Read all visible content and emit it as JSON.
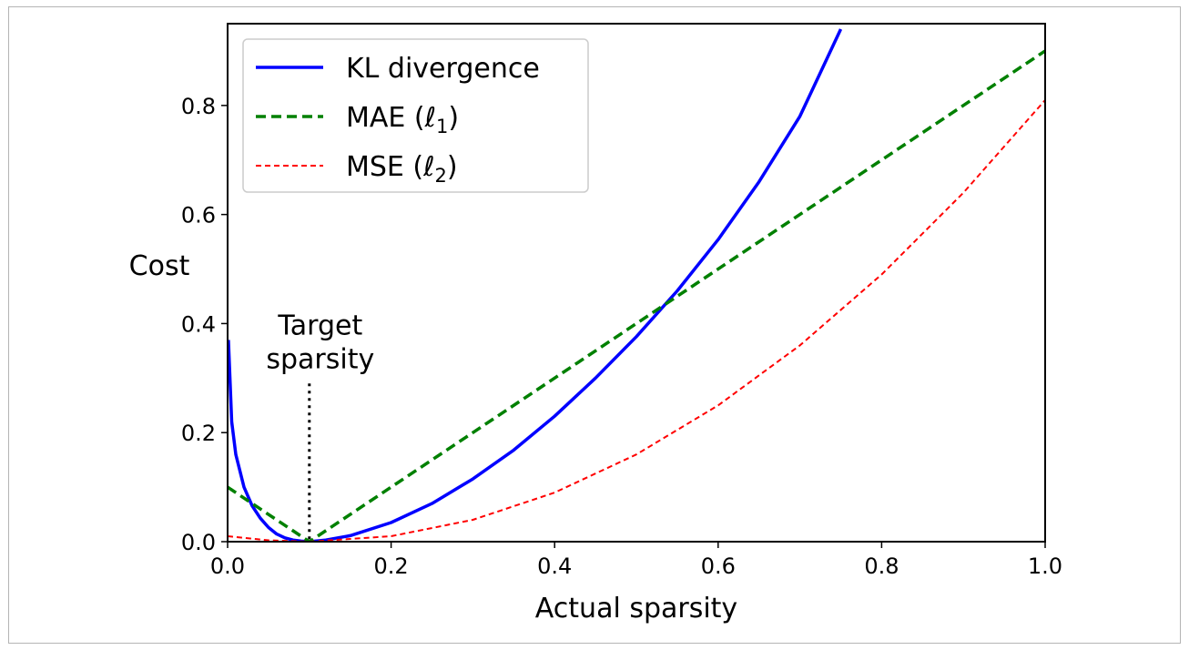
{
  "chart_data": {
    "type": "line",
    "title": "",
    "xlabel": "Actual sparsity",
    "ylabel": "Cost",
    "xlim": [
      0.0,
      1.0
    ],
    "ylim": [
      0.0,
      0.95
    ],
    "x_ticks": [
      0.0,
      0.2,
      0.4,
      0.6,
      0.8,
      1.0
    ],
    "x_tick_labels": [
      "0.0",
      "0.2",
      "0.4",
      "0.6",
      "0.8",
      "1.0"
    ],
    "y_ticks": [
      0.0,
      0.2,
      0.4,
      0.6,
      0.8
    ],
    "y_tick_labels": [
      "0.0",
      "0.2",
      "0.4",
      "0.6",
      "0.8"
    ],
    "grid": false,
    "legend_position": "top-left",
    "target_sparsity": 0.1,
    "annotation": {
      "lines": [
        "Target",
        "sparsity"
      ],
      "x": 0.1,
      "y": 0.29
    },
    "series": [
      {
        "name": "KL divergence",
        "style": "solid",
        "color": "#0000ff",
        "x": [
          0.001,
          0.005,
          0.01,
          0.02,
          0.03,
          0.04,
          0.05,
          0.06,
          0.07,
          0.08,
          0.09,
          0.1,
          0.12,
          0.15,
          0.2,
          0.25,
          0.3,
          0.35,
          0.4,
          0.45,
          0.5,
          0.55,
          0.6,
          0.65,
          0.7,
          0.75
        ],
        "y": [
          0.37,
          0.22,
          0.16,
          0.1,
          0.066,
          0.043,
          0.026,
          0.014,
          0.007,
          0.003,
          0.001,
          0.0,
          0.003,
          0.011,
          0.035,
          0.07,
          0.115,
          0.168,
          0.23,
          0.3,
          0.376,
          0.46,
          0.554,
          0.66,
          0.78,
          0.94
        ]
      },
      {
        "name": "MAE (ℓ₁)",
        "name_main": "MAE (ℓ",
        "name_sub": "1",
        "name_close": ")",
        "style": "dashed",
        "color": "#008000",
        "x": [
          0.0,
          0.1,
          1.0
        ],
        "y": [
          0.1,
          0.0,
          0.9
        ]
      },
      {
        "name": "MSE (ℓ₂)",
        "name_main": "MSE (ℓ",
        "name_sub": "2",
        "name_close": ")",
        "style": "dashed-thin",
        "color": "#ff0000",
        "x": [
          0.0,
          0.05,
          0.1,
          0.2,
          0.3,
          0.4,
          0.5,
          0.6,
          0.7,
          0.8,
          0.9,
          1.0
        ],
        "y": [
          0.01,
          0.0025,
          0.0,
          0.01,
          0.04,
          0.09,
          0.16,
          0.25,
          0.36,
          0.49,
          0.64,
          0.81
        ]
      }
    ]
  }
}
